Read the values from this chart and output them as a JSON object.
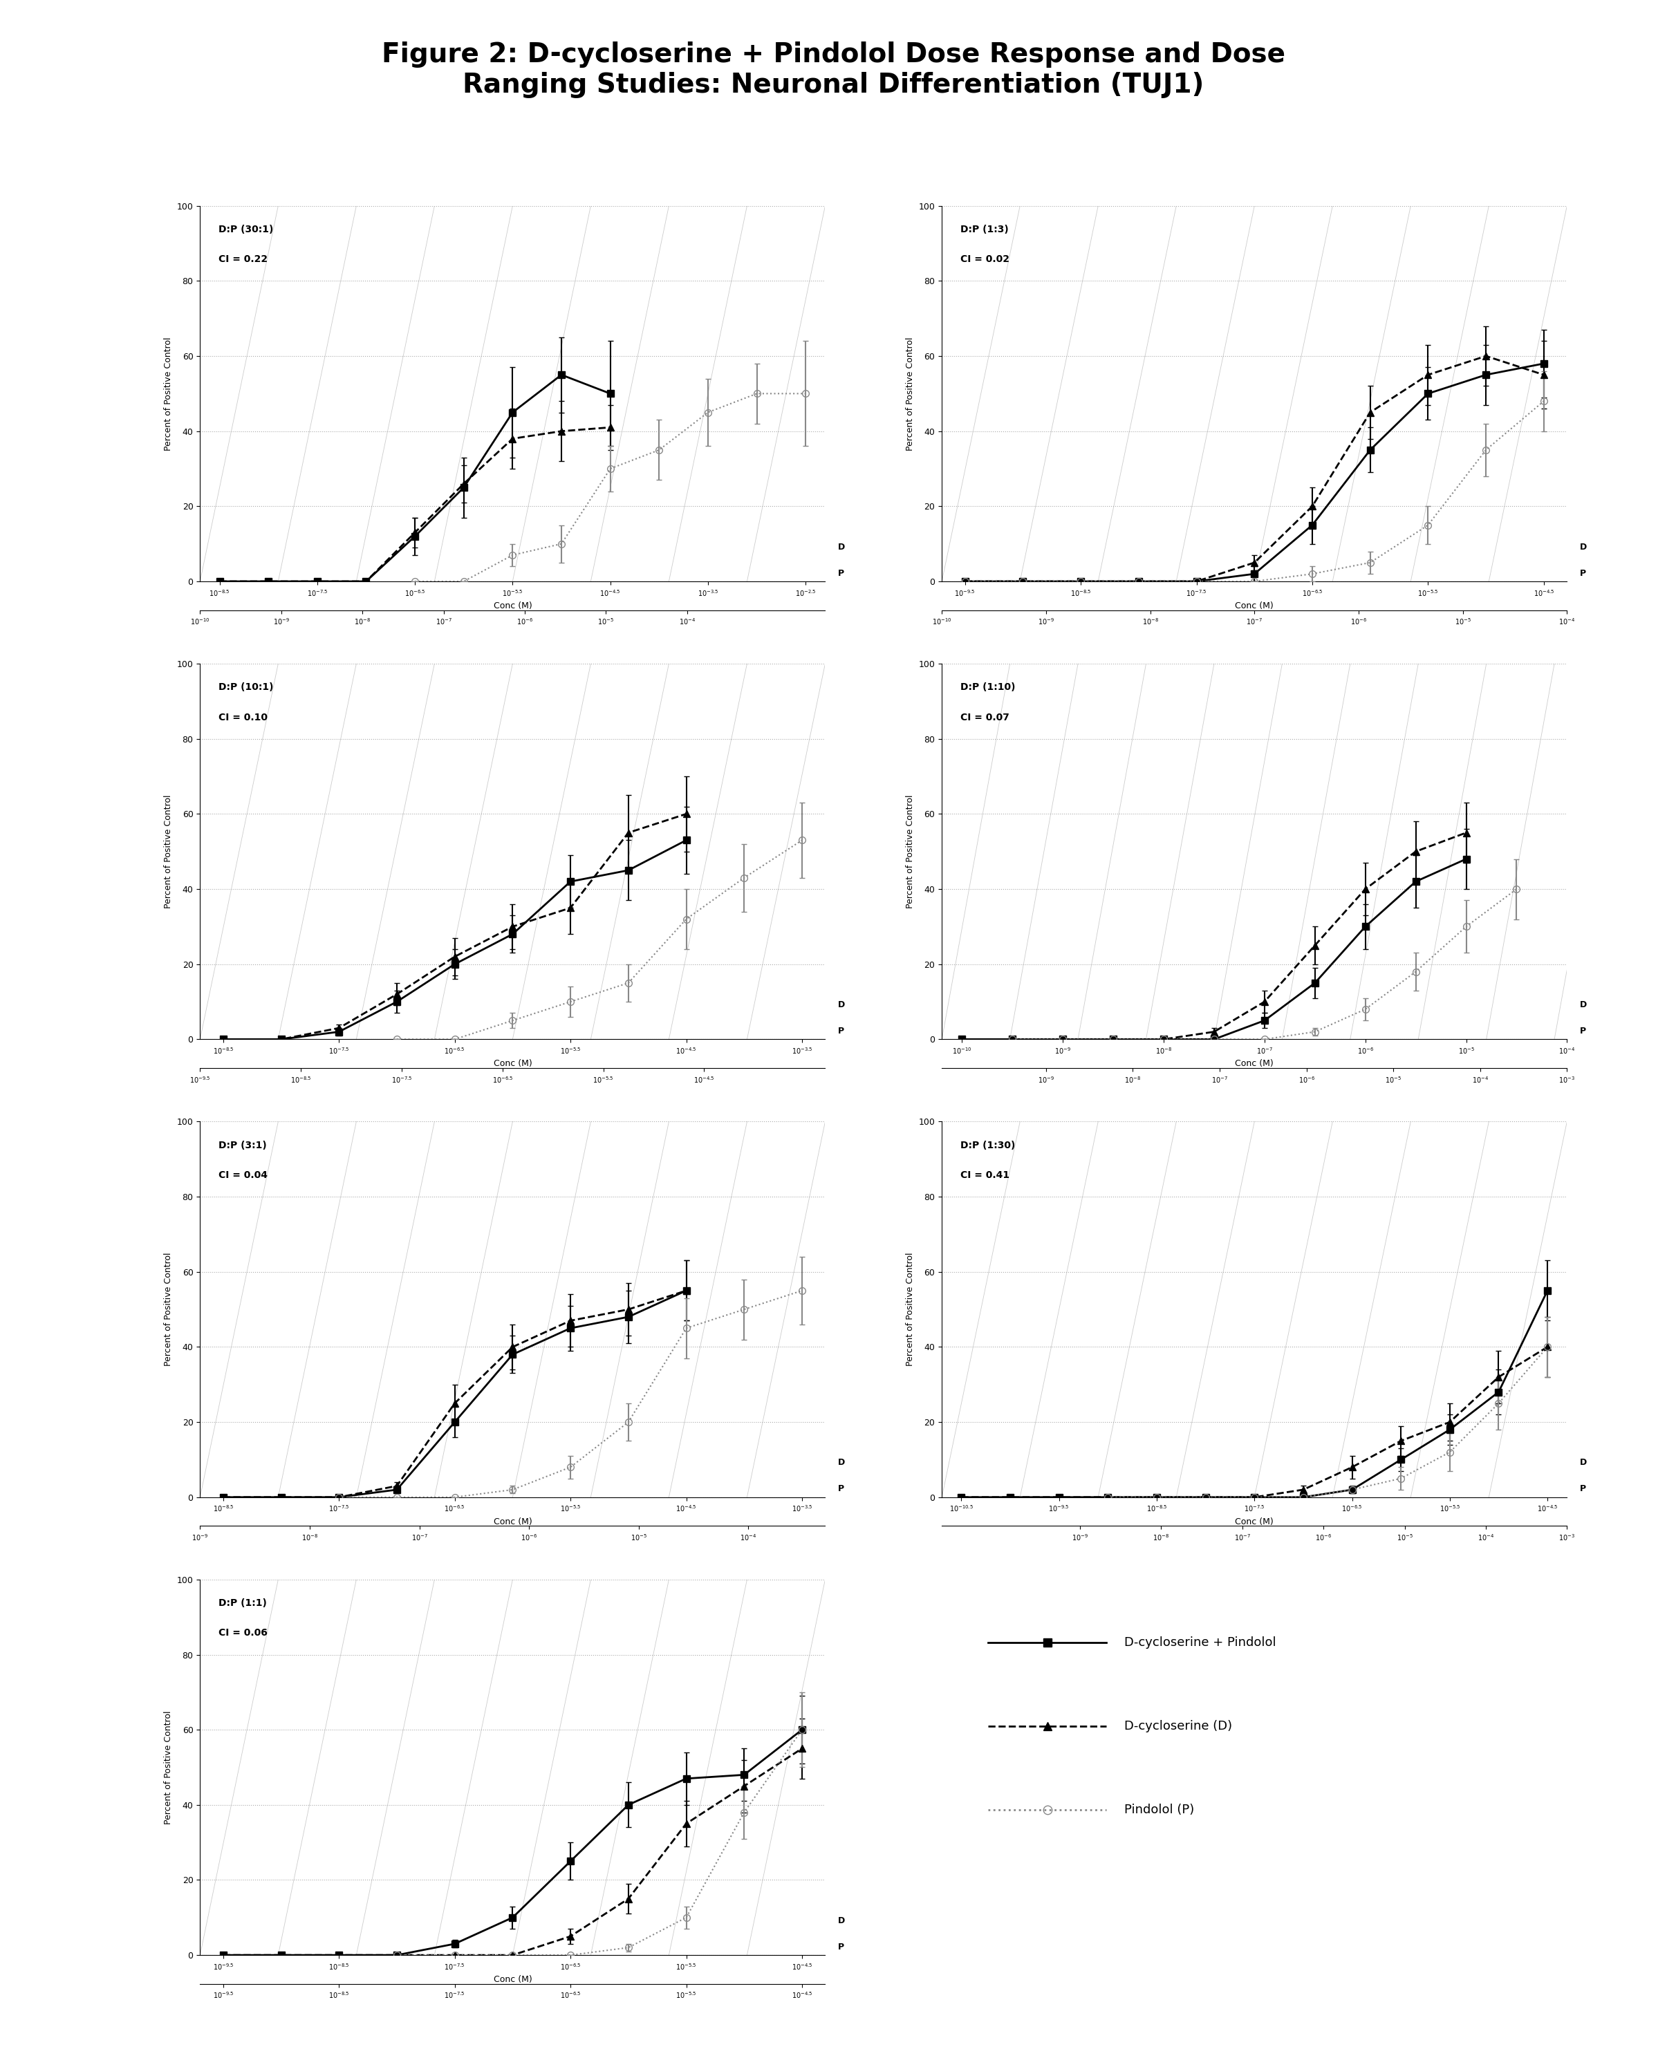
{
  "title": "Figure 2: D-cycloserine + Pindolol Dose Response and Dose\nRanging Studies: Neuronal Differentiation (TUJ1)",
  "ylabel": "Percent of Positive Control",
  "xlabel": "Conc (M)",
  "background_color": "#ffffff",
  "subplots": [
    {
      "label": "D:P (30:1)",
      "ci": "CI = 0.22",
      "row": 0,
      "col": 0,
      "D_x": [
        -8.5,
        -8.0,
        -7.5,
        -7.0,
        -6.5,
        -6.0,
        -5.5,
        -5.0,
        -4.5
      ],
      "D_y": [
        0,
        0,
        0,
        0,
        13,
        26,
        38,
        40,
        41
      ],
      "D_err": [
        0,
        0,
        0,
        0,
        4,
        5,
        8,
        8,
        6
      ],
      "combo_x": [
        -8.5,
        -8.0,
        -7.5,
        -7.0,
        -6.5,
        -6.0,
        -5.5,
        -5.0,
        -4.5
      ],
      "combo_y": [
        0,
        0,
        0,
        0,
        12,
        25,
        45,
        55,
        50
      ],
      "combo_err": [
        0,
        0,
        0,
        0,
        5,
        8,
        12,
        10,
        14
      ],
      "P_x": [
        -6.5,
        -6.0,
        -5.5,
        -5.0,
        -4.5,
        -4.0,
        -3.5,
        -3.0,
        -2.5
      ],
      "P_y": [
        0,
        0,
        7,
        10,
        30,
        35,
        45,
        50,
        50
      ],
      "P_err": [
        0,
        0,
        3,
        5,
        6,
        8,
        9,
        8,
        14
      ],
      "D_xaxis_ticks": [
        -8.5,
        -7.5,
        -6.5,
        -5.5,
        -4.5,
        -3.5,
        -2.5
      ],
      "D_xaxis_labels": [
        "10^{-8.5}",
        "10^{-7.5}",
        "10^{-6.5}",
        "10^{-5.5}",
        "10^{-4.5}",
        "10^{-3.5}",
        "10^{-2.5}"
      ],
      "P_xaxis_ticks": [
        -10.0,
        -9.0,
        -8.0,
        -7.0,
        -6.0,
        -5.0,
        -4.0
      ],
      "P_xaxis_labels": [
        "10^{-10}",
        "10^{-9}",
        "10^{-8}",
        "10^{-7}",
        "10^{-6}",
        "10^{-5}",
        "10^{-4}"
      ],
      "xlim_D": [
        -8.7,
        -2.3
      ],
      "ylim": [
        0,
        100
      ]
    },
    {
      "label": "D:P (1:3)",
      "ci": "CI = 0.02",
      "row": 0,
      "col": 1,
      "D_x": [
        -9.5,
        -9.0,
        -8.5,
        -8.0,
        -7.5,
        -7.0,
        -6.5,
        -6.0,
        -5.5,
        -5.0,
        -4.5
      ],
      "D_y": [
        0,
        0,
        0,
        0,
        0,
        5,
        20,
        45,
        55,
        60,
        55
      ],
      "D_err": [
        0,
        0,
        0,
        0,
        0,
        2,
        5,
        7,
        8,
        8,
        9
      ],
      "combo_x": [
        -9.5,
        -9.0,
        -8.5,
        -8.0,
        -7.5,
        -7.0,
        -6.5,
        -6.0,
        -5.5,
        -5.0,
        -4.5
      ],
      "combo_y": [
        0,
        0,
        0,
        0,
        0,
        2,
        15,
        35,
        50,
        55,
        58
      ],
      "combo_err": [
        0,
        0,
        0,
        0,
        0,
        2,
        5,
        6,
        7,
        8,
        9
      ],
      "P_x": [
        -9.5,
        -9.0,
        -8.5,
        -8.0,
        -7.5,
        -7.0,
        -6.5,
        -6.0,
        -5.5,
        -5.0,
        -4.5
      ],
      "P_y": [
        0,
        0,
        0,
        0,
        0,
        0,
        2,
        5,
        15,
        35,
        48
      ],
      "P_err": [
        0,
        0,
        0,
        0,
        0,
        0,
        2,
        3,
        5,
        7,
        8
      ],
      "D_xaxis_ticks": [
        -9.5,
        -8.5,
        -7.5,
        -6.5,
        -5.5,
        -4.5
      ],
      "D_xaxis_labels": [
        "10^{-9.5}",
        "10^{-8.5}",
        "10^{-7.5}",
        "10^{-6.5}",
        "10^{-5.5}",
        "10^{-4.5}"
      ],
      "P_xaxis_ticks": [
        -10.0,
        -9.0,
        -8.0,
        -7.0,
        -6.0,
        -5.0,
        -4.0
      ],
      "P_xaxis_labels": [
        "10^{-10}",
        "10^{-9}",
        "10^{-8}",
        "10^{-7}",
        "10^{-6}",
        "10^{-5}",
        "10^{-4}"
      ],
      "xlim_D": [
        -9.7,
        -4.3
      ],
      "ylim": [
        0,
        100
      ]
    },
    {
      "label": "D:P (10:1)",
      "ci": "CI = 0.10",
      "row": 1,
      "col": 0,
      "D_x": [
        -8.5,
        -8.0,
        -7.5,
        -7.0,
        -6.5,
        -6.0,
        -5.5,
        -5.0,
        -4.5
      ],
      "D_y": [
        0,
        0,
        3,
        12,
        22,
        30,
        35,
        55,
        60
      ],
      "D_err": [
        0,
        0,
        1,
        3,
        5,
        6,
        7,
        10,
        10
      ],
      "combo_x": [
        -8.5,
        -8.0,
        -7.5,
        -7.0,
        -6.5,
        -6.0,
        -5.5,
        -5.0,
        -4.5
      ],
      "combo_y": [
        0,
        0,
        2,
        10,
        20,
        28,
        42,
        45,
        53
      ],
      "combo_err": [
        0,
        0,
        1,
        3,
        4,
        5,
        7,
        8,
        9
      ],
      "P_x": [
        -7.0,
        -6.5,
        -6.0,
        -5.5,
        -5.0,
        -4.5,
        -4.0,
        -3.5
      ],
      "P_y": [
        0,
        0,
        5,
        10,
        15,
        32,
        43,
        53
      ],
      "P_err": [
        0,
        0,
        2,
        4,
        5,
        8,
        9,
        10
      ],
      "D_xaxis_ticks": [
        -8.5,
        -7.5,
        -6.5,
        -5.5,
        -4.5,
        -3.5
      ],
      "D_xaxis_labels": [
        "10^{-8.5}",
        "10^{-7.5}",
        "10^{-6.5}",
        "10^{-5.5}",
        "10^{-4.5}",
        "10^{-3.5}"
      ],
      "P_xaxis_ticks": [
        -9.5,
        -8.5,
        -7.5,
        -6.5,
        -5.5,
        -4.5
      ],
      "P_xaxis_labels": [
        "10^{-9.5}",
        "10^{-8.5}",
        "10^{-7.5}",
        "10^{-6.5}",
        "10^{-5.5}",
        "10^{-4.5}"
      ],
      "xlim_D": [
        -8.7,
        -3.3
      ],
      "ylim": [
        0,
        100
      ]
    },
    {
      "label": "D:P (1:10)",
      "ci": "CI = 0.07",
      "row": 1,
      "col": 1,
      "D_x": [
        -10.0,
        -9.5,
        -9.0,
        -8.5,
        -8.0,
        -7.5,
        -7.0,
        -6.5,
        -6.0,
        -5.5,
        -5.0
      ],
      "D_y": [
        0,
        0,
        0,
        0,
        0,
        2,
        10,
        25,
        40,
        50,
        55
      ],
      "D_err": [
        0,
        0,
        0,
        0,
        0,
        1,
        3,
        5,
        7,
        8,
        8
      ],
      "combo_x": [
        -10.0,
        -9.5,
        -9.0,
        -8.5,
        -8.0,
        -7.5,
        -7.0,
        -6.5,
        -6.0,
        -5.5,
        -5.0
      ],
      "combo_y": [
        0,
        0,
        0,
        0,
        0,
        0,
        5,
        15,
        30,
        42,
        48
      ],
      "combo_err": [
        0,
        0,
        0,
        0,
        0,
        0,
        2,
        4,
        6,
        7,
        8
      ],
      "P_x": [
        -9.5,
        -9.0,
        -8.5,
        -8.0,
        -7.5,
        -7.0,
        -6.5,
        -6.0,
        -5.5,
        -5.0,
        -4.5
      ],
      "P_y": [
        0,
        0,
        0,
        0,
        0,
        0,
        2,
        8,
        18,
        30,
        40
      ],
      "P_err": [
        0,
        0,
        0,
        0,
        0,
        0,
        1,
        3,
        5,
        7,
        8
      ],
      "D_xaxis_ticks": [
        -10.0,
        -9.0,
        -8.0,
        -7.0,
        -6.0,
        -5.0,
        -4.0
      ],
      "D_xaxis_labels": [
        "10^{-10}",
        "10^{-9}",
        "10^{-8}",
        "10^{-7}",
        "10^{-6}",
        "10^{-5}",
        "10^{-4}"
      ],
      "P_xaxis_ticks": [
        -9.0,
        -8.0,
        -7.0,
        -6.0,
        -5.0,
        -4.0,
        -3.0
      ],
      "P_xaxis_labels": [
        "10^{-9}",
        "10^{-8}",
        "10^{-7}",
        "10^{-6}",
        "10^{-5}",
        "10^{-4}",
        "10^{-3}"
      ],
      "xlim_D": [
        -10.2,
        -4.8
      ],
      "ylim": [
        0,
        100
      ]
    },
    {
      "label": "D:P (3:1)",
      "ci": "CI = 0.04",
      "row": 2,
      "col": 0,
      "D_x": [
        -8.5,
        -8.0,
        -7.5,
        -7.0,
        -6.5,
        -6.0,
        -5.5,
        -5.0,
        -4.5
      ],
      "D_y": [
        0,
        0,
        0,
        3,
        25,
        40,
        47,
        50,
        55
      ],
      "D_err": [
        0,
        0,
        0,
        1,
        5,
        6,
        7,
        7,
        8
      ],
      "combo_x": [
        -8.5,
        -8.0,
        -7.5,
        -7.0,
        -6.5,
        -6.0,
        -5.5,
        -5.0,
        -4.5
      ],
      "combo_y": [
        0,
        0,
        0,
        2,
        20,
        38,
        45,
        48,
        55
      ],
      "combo_err": [
        0,
        0,
        0,
        1,
        4,
        5,
        6,
        7,
        8
      ],
      "P_x": [
        -7.5,
        -7.0,
        -6.5,
        -6.0,
        -5.5,
        -5.0,
        -4.5,
        -4.0,
        -3.5
      ],
      "P_y": [
        0,
        0,
        0,
        2,
        8,
        20,
        45,
        50,
        55
      ],
      "P_err": [
        0,
        0,
        0,
        1,
        3,
        5,
        8,
        8,
        9
      ],
      "D_xaxis_ticks": [
        -8.5,
        -7.5,
        -6.5,
        -5.5,
        -4.5,
        -3.5
      ],
      "D_xaxis_labels": [
        "10^{-8.5}",
        "10^{-7.5}",
        "10^{-6.5}",
        "10^{-5.5}",
        "10^{-4.5}",
        "10^{-3.5}"
      ],
      "P_xaxis_ticks": [
        -9.0,
        -8.0,
        -7.0,
        -6.0,
        -5.0,
        -4.0
      ],
      "P_xaxis_labels": [
        "10^{-9}",
        "10^{-8}",
        "10^{-7}",
        "10^{-6}",
        "10^{-5}",
        "10^{-4}"
      ],
      "xlim_D": [
        -8.7,
        -3.3
      ],
      "ylim": [
        0,
        100
      ]
    },
    {
      "label": "D:P (1:30)",
      "ci": "CI = 0.41",
      "row": 2,
      "col": 1,
      "D_x": [
        -10.5,
        -10.0,
        -9.5,
        -9.0,
        -8.5,
        -8.0,
        -7.5,
        -7.0,
        -6.5,
        -6.0,
        -5.5,
        -5.0,
        -4.5
      ],
      "D_y": [
        0,
        0,
        0,
        0,
        0,
        0,
        0,
        2,
        8,
        15,
        20,
        32,
        40
      ],
      "D_err": [
        0,
        0,
        0,
        0,
        0,
        0,
        0,
        1,
        3,
        4,
        5,
        7,
        8
      ],
      "combo_x": [
        -10.5,
        -10.0,
        -9.5,
        -9.0,
        -8.5,
        -8.0,
        -7.5,
        -7.0,
        -6.5,
        -6.0,
        -5.5,
        -5.0,
        -4.5
      ],
      "combo_y": [
        0,
        0,
        0,
        0,
        0,
        0,
        0,
        0,
        2,
        10,
        18,
        28,
        55
      ],
      "combo_err": [
        0,
        0,
        0,
        0,
        0,
        0,
        0,
        0,
        1,
        3,
        4,
        6,
        8
      ],
      "P_x": [
        -9.0,
        -8.5,
        -8.0,
        -7.5,
        -7.0,
        -6.5,
        -6.0,
        -5.5,
        -5.0,
        -4.5
      ],
      "P_y": [
        0,
        0,
        0,
        0,
        0,
        2,
        5,
        12,
        25,
        40
      ],
      "P_err": [
        0,
        0,
        0,
        0,
        0,
        1,
        3,
        5,
        7,
        8
      ],
      "D_xaxis_ticks": [
        -10.5,
        -9.5,
        -8.5,
        -7.5,
        -6.5,
        -5.5,
        -4.5
      ],
      "D_xaxis_labels": [
        "10^{-10.5}",
        "10^{-9.5}",
        "10^{-8.5}",
        "10^{-7.5}",
        "10^{-6.5}",
        "10^{-5.5}",
        "10^{-4.5}"
      ],
      "P_xaxis_ticks": [
        -9.0,
        -8.0,
        -7.0,
        -6.0,
        -5.0,
        -4.0,
        -3.0
      ],
      "P_xaxis_labels": [
        "10^{-9}",
        "10^{-8}",
        "10^{-7}",
        "10^{-6}",
        "10^{-5}",
        "10^{-4}",
        "10^{-3}"
      ],
      "xlim_D": [
        -10.7,
        -4.3
      ],
      "ylim": [
        0,
        100
      ]
    },
    {
      "label": "D:P (1:1)",
      "ci": "CI = 0.06",
      "row": 3,
      "col": 0,
      "D_x": [
        -9.5,
        -9.0,
        -8.5,
        -8.0,
        -7.5,
        -7.0,
        -6.5,
        -6.0,
        -5.5,
        -5.0,
        -4.5
      ],
      "D_y": [
        0,
        0,
        0,
        0,
        0,
        0,
        5,
        15,
        35,
        45,
        55
      ],
      "D_err": [
        0,
        0,
        0,
        0,
        0,
        0,
        2,
        4,
        6,
        7,
        8
      ],
      "combo_x": [
        -9.5,
        -9.0,
        -8.5,
        -8.0,
        -7.5,
        -7.0,
        -6.5,
        -6.0,
        -5.5,
        -5.0,
        -4.5
      ],
      "combo_y": [
        0,
        0,
        0,
        0,
        3,
        10,
        25,
        40,
        47,
        48,
        60
      ],
      "combo_err": [
        0,
        0,
        0,
        0,
        1,
        3,
        5,
        6,
        7,
        7,
        9
      ],
      "P_x": [
        -8.0,
        -7.5,
        -7.0,
        -6.5,
        -6.0,
        -5.5,
        -5.0,
        -4.5
      ],
      "P_y": [
        0,
        0,
        0,
        0,
        2,
        10,
        38,
        60
      ],
      "P_err": [
        0,
        0,
        0,
        0,
        1,
        3,
        7,
        10
      ],
      "D_xaxis_ticks": [
        -9.5,
        -8.5,
        -7.5,
        -6.5,
        -5.5,
        -4.5
      ],
      "D_xaxis_labels": [
        "10^{-9.5}",
        "10^{-8.5}",
        "10^{-7.5}",
        "10^{-6.5}",
        "10^{-5.5}",
        "10^{-4.5}"
      ],
      "P_xaxis_ticks": [
        -9.5,
        -8.5,
        -7.5,
        -6.5,
        -5.5,
        -4.5
      ],
      "P_xaxis_labels": [
        "10^{-9.5}",
        "10^{-8.5}",
        "10^{-7.5}",
        "10^{-6.5}",
        "10^{-5.5}",
        "10^{-4.5}"
      ],
      "xlim_D": [
        -9.7,
        -4.3
      ],
      "ylim": [
        0,
        100
      ]
    }
  ],
  "legend_entries": [
    {
      "label": "D-cycloserine + Pindolol",
      "marker": "s",
      "color": "#000000",
      "linestyle": "-"
    },
    {
      "label": "D-cycloserine (D)",
      "marker": "^",
      "color": "#000000",
      "linestyle": "--"
    },
    {
      "label": "Pindolol (P)",
      "marker": "o",
      "color": "#888888",
      "linestyle": ":"
    }
  ]
}
